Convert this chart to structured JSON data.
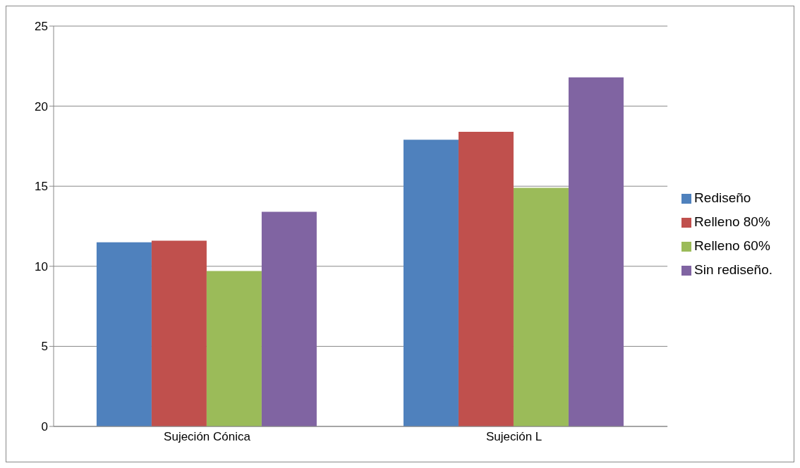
{
  "chart_data": {
    "type": "bar",
    "categories": [
      "Sujeción Cónica",
      "Sujeción L"
    ],
    "series": [
      {
        "name": "Rediseño",
        "color": "#4f81bd",
        "values": [
          11.5,
          17.9
        ]
      },
      {
        "name": "Relleno 80%",
        "color": "#c0504d",
        "values": [
          11.6,
          18.4
        ]
      },
      {
        "name": "Relleno 60%",
        "color": "#9bbb59",
        "values": [
          9.7,
          14.9
        ]
      },
      {
        "name": "Sin rediseño.",
        "color": "#8064a2",
        "values": [
          13.4,
          21.8
        ]
      }
    ],
    "ylim": [
      0,
      25
    ],
    "yticks": [
      0,
      5,
      10,
      15,
      20,
      25
    ],
    "grid": "y",
    "legend": "right"
  }
}
